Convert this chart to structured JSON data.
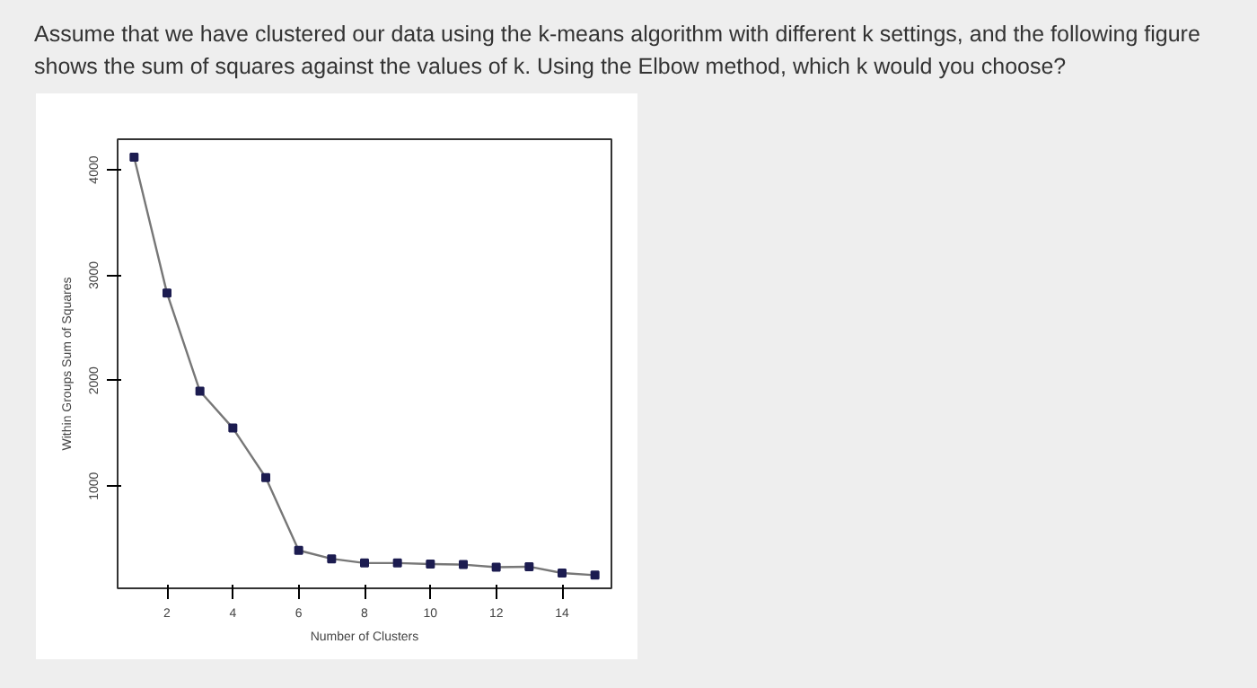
{
  "chart_data": {
    "type": "line",
    "title": "Assume that we have clustered our data using the k-means algorithm with different k settings, and the following figure shows the sum of squares against the values of k. Using the Elbow method, which k would you choose?",
    "xlabel": "Number of Clusters",
    "ylabel": "Within Groups Sum of Squares",
    "x": [
      1,
      2,
      3,
      4,
      5,
      6,
      7,
      8,
      9,
      10,
      11,
      12,
      13,
      14,
      15
    ],
    "series": [
      {
        "color": "#1c1c50",
        "values": [
          4120,
          2830,
          1900,
          1550,
          1080,
          390,
          310,
          270,
          270,
          260,
          255,
          230,
          235,
          175,
          155
        ]
      }
    ],
    "xlim": [
      0.5,
      15.5
    ],
    "ylim": [
      30,
      4290
    ],
    "xticks": [
      2,
      4,
      6,
      8,
      10,
      12,
      14
    ],
    "yticks": [
      1000,
      2000,
      3000,
      4000
    ],
    "marker": "square",
    "line_style": "solid",
    "grid": false
  }
}
